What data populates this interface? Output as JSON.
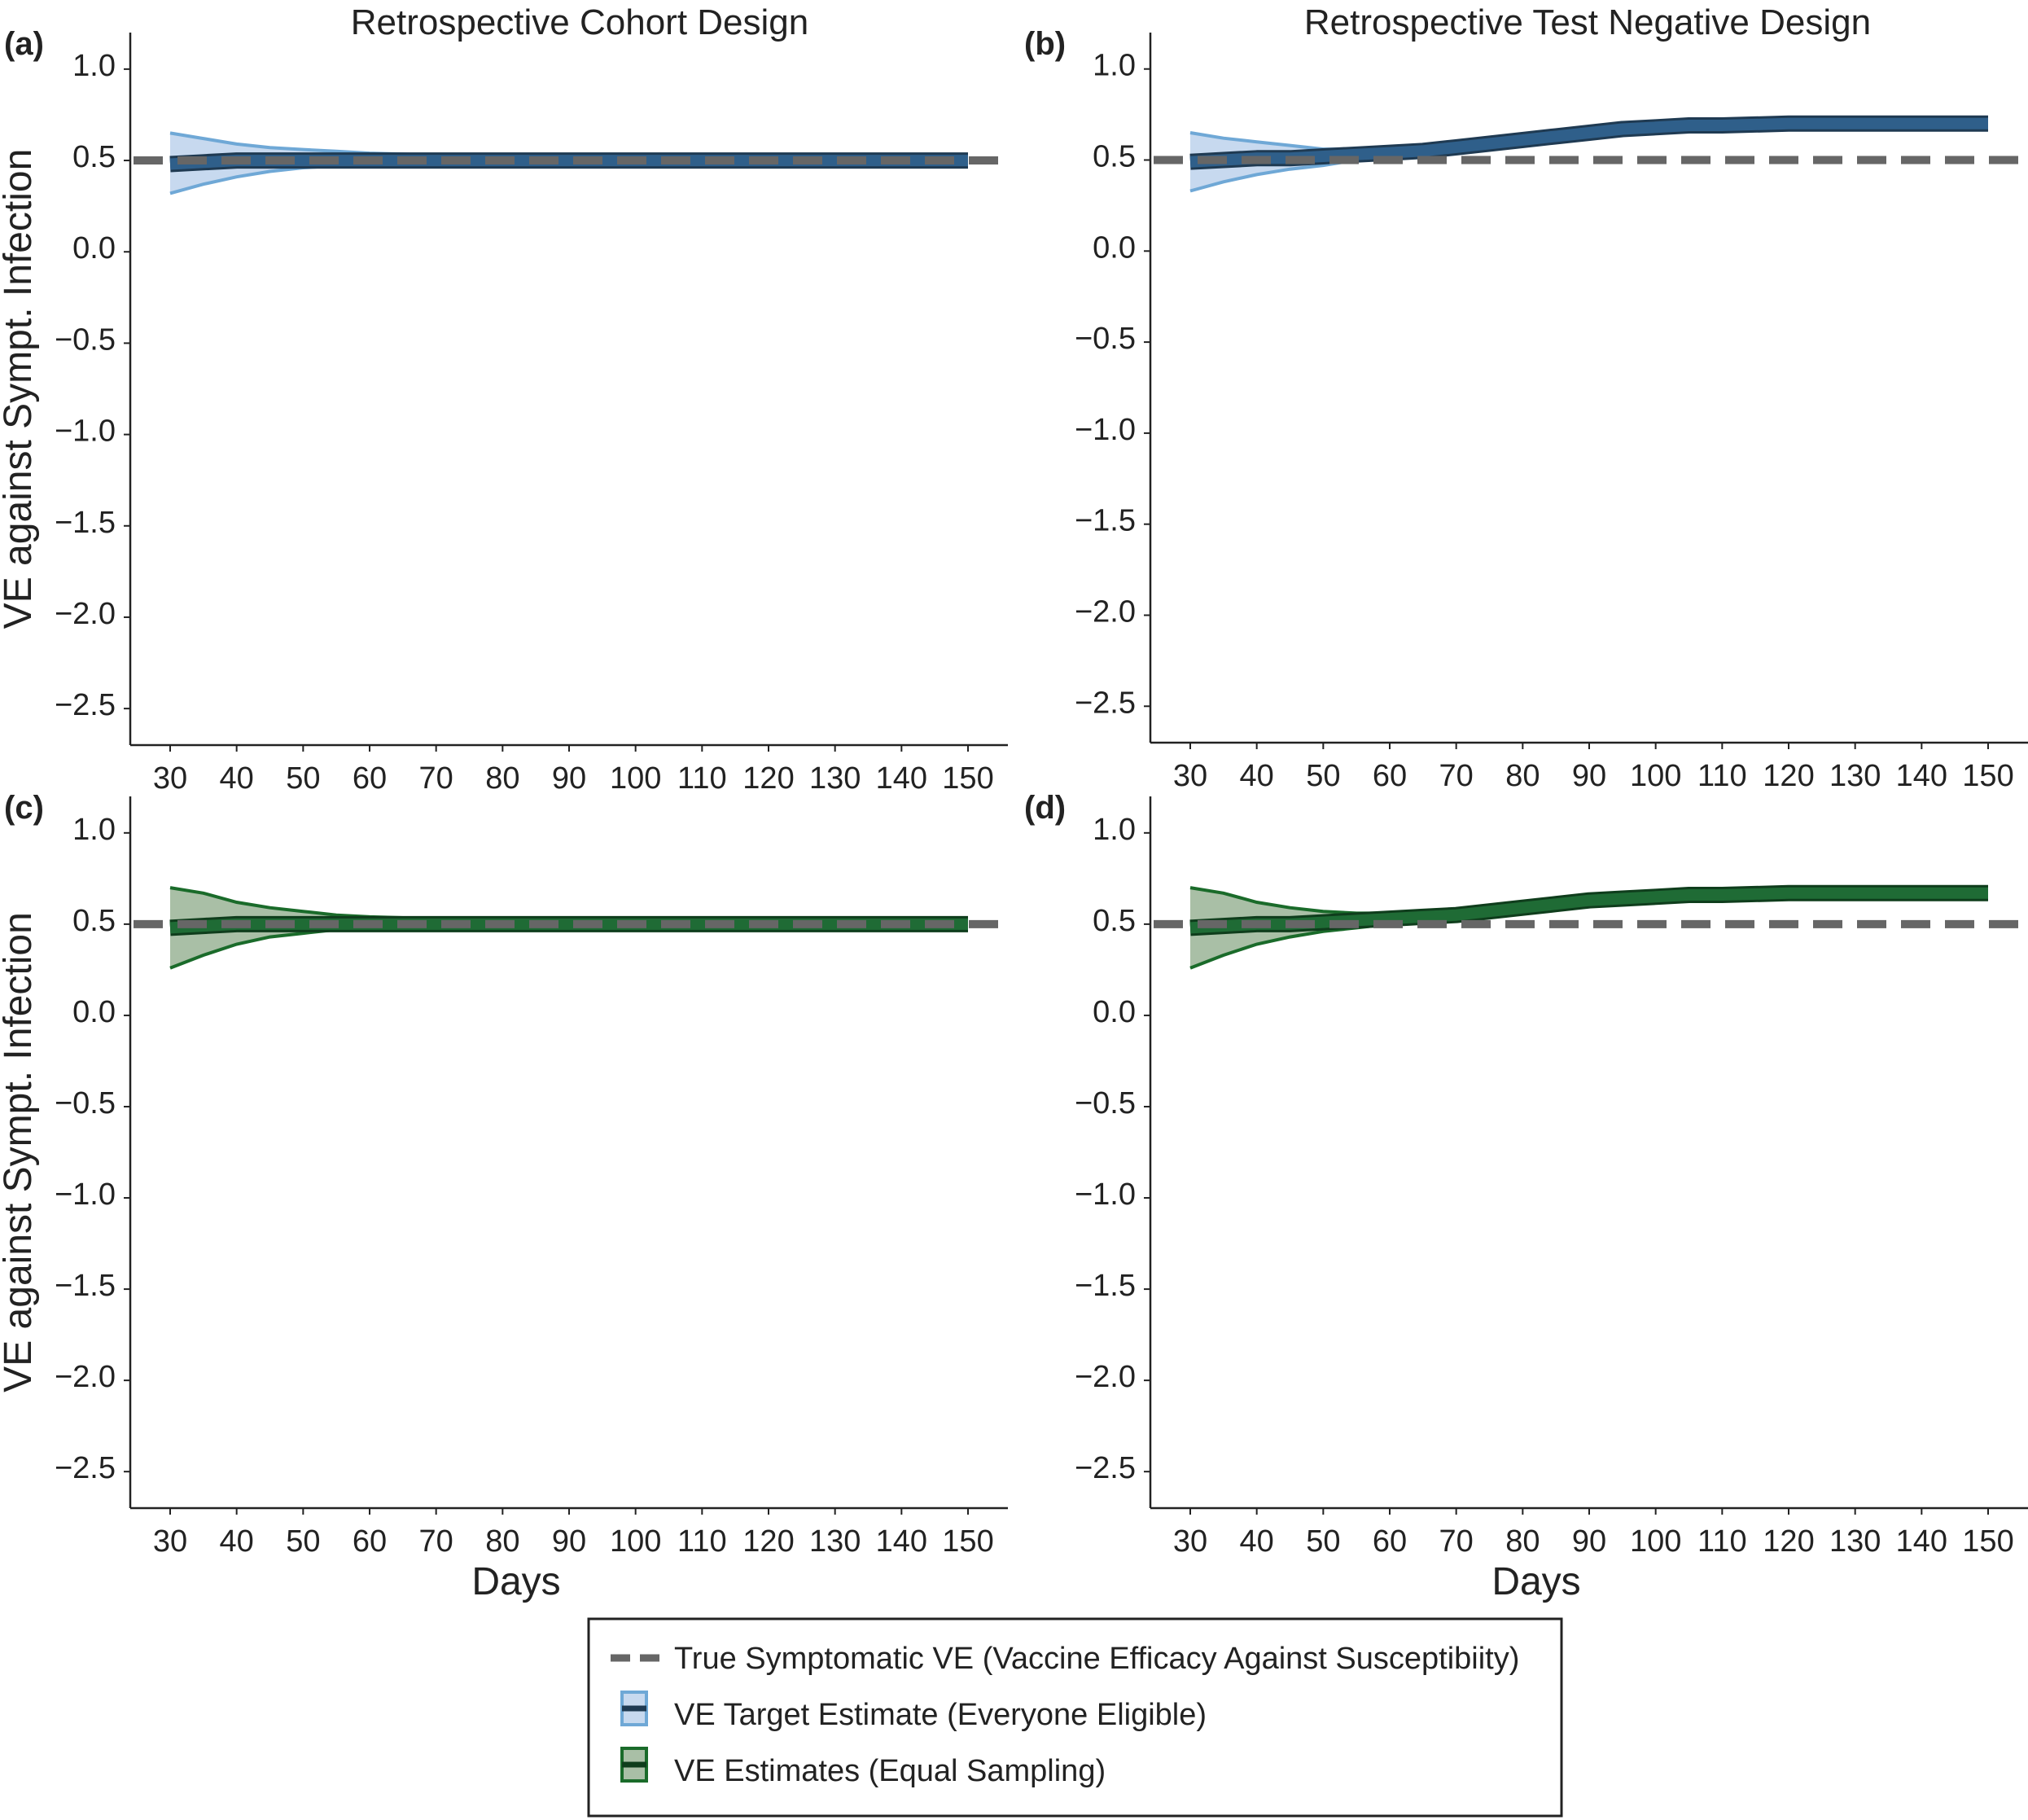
{
  "column_titles": [
    "Retrospective Cohort Design",
    "Retrospective Test Negative Design"
  ],
  "colors": {
    "true_ve": "#666666",
    "target_fill": "#c7d9ef",
    "target_band_edge": "#6fa8d6",
    "target_line": "#2f5f8a",
    "target_line_dark": "#1f3a52",
    "equal_fill": "#a9bfa6",
    "equal_band_edge": "#1a6b2a",
    "equal_line": "#1f6b35",
    "equal_line_dark": "#0f3d1c"
  },
  "legend": {
    "items": [
      {
        "label": "True Symptomatic VE (Vaccine Efficacy Against Susceptibiity)",
        "icon": "dashed-line-icon"
      },
      {
        "label": "VE Target Estimate (Everyone Eligible)",
        "icon": "blue-band-icon"
      },
      {
        "label": "VE Estimates (Equal Sampling)",
        "icon": "green-band-icon"
      }
    ]
  },
  "chart_data": [
    {
      "id": "a",
      "panel_label": "(a)",
      "type": "line",
      "title": "Retrospective Cohort Design",
      "xlabel": "",
      "ylabel": "VE against Sympt. Infection",
      "xlim": [
        24,
        156
      ],
      "ylim": [
        -2.7,
        1.2
      ],
      "xticks": [
        30,
        40,
        50,
        60,
        70,
        80,
        90,
        100,
        110,
        120,
        130,
        140,
        150
      ],
      "yticks": [
        1.0,
        0.5,
        0.0,
        -0.5,
        -1.0,
        -1.5,
        -2.0,
        -2.5
      ],
      "ytick_labels": [
        "1.0",
        "0.5",
        "0.0",
        "−0.5",
        "−1.0",
        "−1.5",
        "−2.0",
        "−2.5"
      ],
      "reference_line": {
        "series": "True Symptomatic VE (Vaccine Efficacy Against Susceptibiity)",
        "y": 0.5,
        "style": "dashed"
      },
      "series": [
        {
          "name": "VE Target Estimate (Everyone Eligible)",
          "color_key": "target",
          "x": [
            30,
            35,
            40,
            45,
            50,
            55,
            60,
            70,
            80,
            90,
            100,
            110,
            120,
            130,
            140,
            150
          ],
          "estimate": [
            0.48,
            0.49,
            0.5,
            0.5,
            0.5,
            0.5,
            0.5,
            0.5,
            0.5,
            0.5,
            0.5,
            0.5,
            0.5,
            0.5,
            0.5,
            0.5
          ],
          "lower": [
            0.32,
            0.37,
            0.41,
            0.44,
            0.46,
            0.47,
            0.48,
            0.49,
            0.49,
            0.49,
            0.49,
            0.49,
            0.49,
            0.49,
            0.49,
            0.49
          ],
          "upper": [
            0.65,
            0.62,
            0.59,
            0.57,
            0.56,
            0.55,
            0.54,
            0.53,
            0.52,
            0.52,
            0.52,
            0.52,
            0.52,
            0.52,
            0.52,
            0.52
          ]
        }
      ]
    },
    {
      "id": "b",
      "panel_label": "(b)",
      "type": "line",
      "title": "Retrospective Test Negative Design",
      "xlabel": "",
      "ylabel": "",
      "xlim": [
        24,
        156
      ],
      "ylim": [
        -2.7,
        1.2
      ],
      "xticks": [
        30,
        40,
        50,
        60,
        70,
        80,
        90,
        100,
        110,
        120,
        130,
        140,
        150
      ],
      "yticks": [
        1.0,
        0.5,
        0.0,
        -0.5,
        -1.0,
        -1.5,
        -2.0,
        -2.5
      ],
      "ytick_labels": [
        "1.0",
        "0.5",
        "0.0",
        "−0.5",
        "−1.0",
        "−1.5",
        "−2.0",
        "−2.5"
      ],
      "reference_line": {
        "series": "True Symptomatic VE (Vaccine Efficacy Against Susceptibiity)",
        "y": 0.5,
        "style": "dashed"
      },
      "series": [
        {
          "name": "VE Target Estimate (Everyone Eligible)",
          "color_key": "target",
          "x": [
            30,
            35,
            40,
            45,
            50,
            55,
            60,
            65,
            70,
            75,
            80,
            85,
            90,
            95,
            100,
            105,
            110,
            120,
            130,
            140,
            150
          ],
          "estimate": [
            0.49,
            0.5,
            0.51,
            0.51,
            0.52,
            0.53,
            0.54,
            0.55,
            0.57,
            0.59,
            0.61,
            0.63,
            0.65,
            0.67,
            0.68,
            0.69,
            0.69,
            0.7,
            0.7,
            0.7,
            0.7
          ],
          "lower": [
            0.33,
            0.38,
            0.42,
            0.45,
            0.47,
            0.5,
            0.52,
            0.54,
            0.56,
            0.58,
            0.6,
            0.62,
            0.64,
            0.66,
            0.67,
            0.68,
            0.68,
            0.69,
            0.69,
            0.69,
            0.69
          ],
          "upper": [
            0.65,
            0.62,
            0.6,
            0.58,
            0.56,
            0.56,
            0.56,
            0.57,
            0.58,
            0.6,
            0.62,
            0.64,
            0.66,
            0.68,
            0.69,
            0.7,
            0.7,
            0.71,
            0.71,
            0.71,
            0.71
          ]
        }
      ]
    },
    {
      "id": "c",
      "panel_label": "(c)",
      "type": "line",
      "title": "",
      "xlabel": "Days",
      "ylabel": "VE against Sympt. Infection",
      "xlim": [
        24,
        156
      ],
      "ylim": [
        -2.7,
        1.2
      ],
      "xticks": [
        30,
        40,
        50,
        60,
        70,
        80,
        90,
        100,
        110,
        120,
        130,
        140,
        150
      ],
      "yticks": [
        1.0,
        0.5,
        0.0,
        -0.5,
        -1.0,
        -1.5,
        -2.0,
        -2.5
      ],
      "ytick_labels": [
        "1.0",
        "0.5",
        "0.0",
        "−0.5",
        "−1.0",
        "−1.5",
        "−2.0",
        "−2.5"
      ],
      "reference_line": {
        "series": "True Symptomatic VE (Vaccine Efficacy Against Susceptibiity)",
        "y": 0.5,
        "style": "dashed"
      },
      "series": [
        {
          "name": "VE Estimates (Equal Sampling)",
          "color_key": "equal",
          "x": [
            30,
            35,
            40,
            45,
            50,
            55,
            60,
            70,
            80,
            90,
            100,
            110,
            120,
            130,
            140,
            150
          ],
          "estimate": [
            0.48,
            0.49,
            0.5,
            0.5,
            0.5,
            0.5,
            0.5,
            0.5,
            0.5,
            0.5,
            0.5,
            0.5,
            0.5,
            0.5,
            0.5,
            0.5
          ],
          "lower": [
            0.26,
            0.33,
            0.39,
            0.43,
            0.45,
            0.47,
            0.48,
            0.49,
            0.49,
            0.49,
            0.49,
            0.49,
            0.49,
            0.49,
            0.49,
            0.49
          ],
          "upper": [
            0.7,
            0.67,
            0.62,
            0.59,
            0.57,
            0.55,
            0.54,
            0.53,
            0.52,
            0.52,
            0.52,
            0.52,
            0.52,
            0.52,
            0.52,
            0.52
          ]
        }
      ]
    },
    {
      "id": "d",
      "panel_label": "(d)",
      "type": "line",
      "title": "",
      "xlabel": "Days",
      "ylabel": "",
      "xlim": [
        24,
        156
      ],
      "ylim": [
        -2.7,
        1.2
      ],
      "xticks": [
        30,
        40,
        50,
        60,
        70,
        80,
        90,
        100,
        110,
        120,
        130,
        140,
        150
      ],
      "yticks": [
        1.0,
        0.5,
        0.0,
        -0.5,
        -1.0,
        -1.5,
        -2.0,
        -2.5
      ],
      "ytick_labels": [
        "1.0",
        "0.5",
        "0.0",
        "−0.5",
        "−1.0",
        "−1.5",
        "−2.0",
        "−2.5"
      ],
      "reference_line": {
        "series": "True Symptomatic VE (Vaccine Efficacy Against Susceptibiity)",
        "y": 0.5,
        "style": "dashed"
      },
      "series": [
        {
          "name": "VE Estimates (Equal Sampling)",
          "color_key": "equal",
          "x": [
            30,
            35,
            40,
            45,
            50,
            55,
            60,
            65,
            70,
            75,
            80,
            85,
            90,
            95,
            100,
            105,
            110,
            120,
            130,
            140,
            150
          ],
          "estimate": [
            0.48,
            0.49,
            0.5,
            0.5,
            0.51,
            0.52,
            0.53,
            0.54,
            0.55,
            0.57,
            0.59,
            0.61,
            0.63,
            0.64,
            0.65,
            0.66,
            0.66,
            0.67,
            0.67,
            0.67,
            0.67
          ],
          "lower": [
            0.26,
            0.33,
            0.39,
            0.43,
            0.46,
            0.48,
            0.5,
            0.52,
            0.54,
            0.56,
            0.58,
            0.6,
            0.62,
            0.63,
            0.64,
            0.65,
            0.65,
            0.66,
            0.66,
            0.66,
            0.66
          ],
          "upper": [
            0.7,
            0.67,
            0.62,
            0.59,
            0.57,
            0.56,
            0.56,
            0.56,
            0.57,
            0.58,
            0.6,
            0.62,
            0.64,
            0.65,
            0.66,
            0.67,
            0.67,
            0.68,
            0.68,
            0.68,
            0.68
          ]
        }
      ]
    }
  ]
}
